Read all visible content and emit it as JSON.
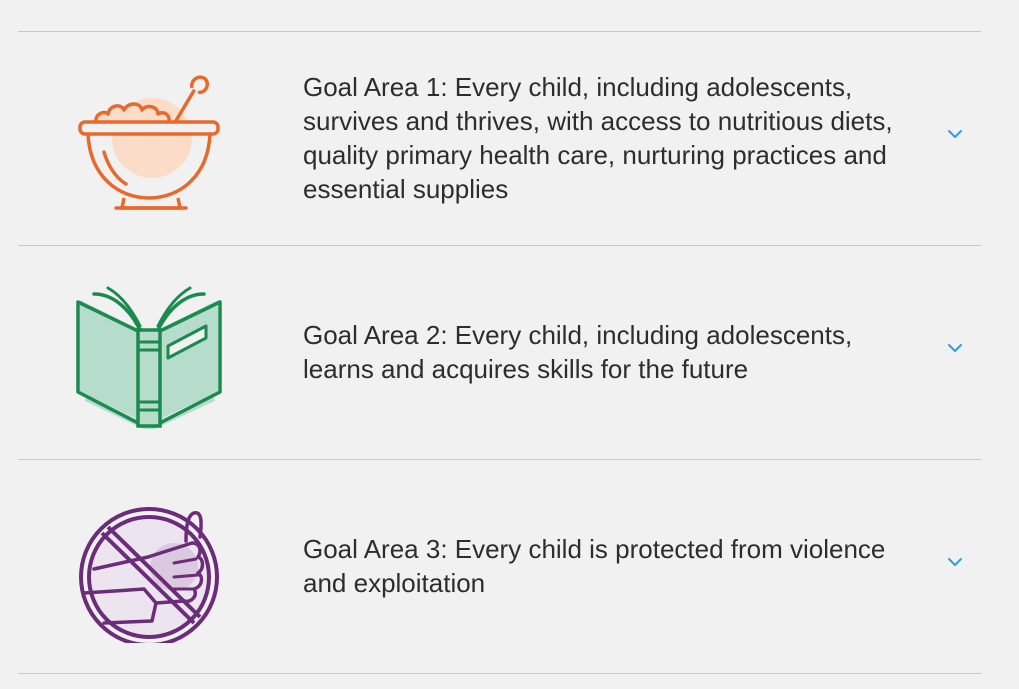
{
  "goals": [
    {
      "text": "Goal Area 1: Every child, including adolescents, survives and thrives, with access to nutritious diets, quality primary health care, nurturing practices and essential supplies",
      "icon": "bowl-icon",
      "color": "#e8692c",
      "fill": "#fbdcc8"
    },
    {
      "text": "Goal Area 2: Every child, including adolescents, learns and acquires skills for the future",
      "icon": "book-icon",
      "color": "#1b8a4e",
      "fill": "#b6dccb"
    },
    {
      "text": "Goal Area 3: Every child is protected from violence and exploitation",
      "icon": "no-violence-icon",
      "color": "#6b2d7a",
      "fill": "#dbc9df"
    }
  ],
  "chevron_color": "#2aa0e0"
}
